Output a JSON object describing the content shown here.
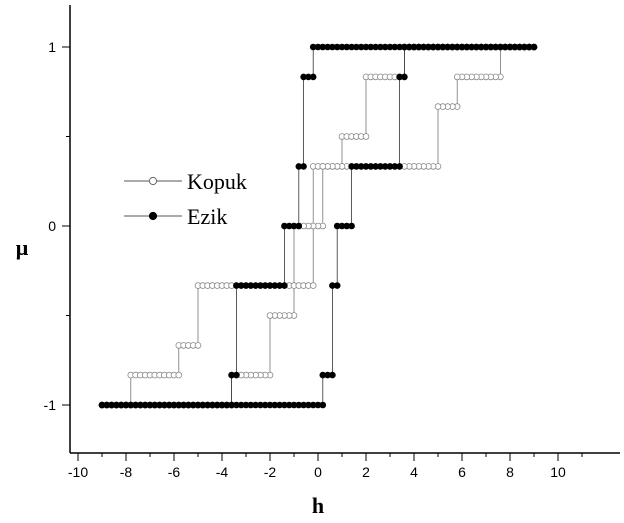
{
  "chart_data": {
    "type": "scatter",
    "xlabel": "h",
    "ylabel": "μ",
    "xlim": [
      -11,
      11
    ],
    "ylim": [
      -1.25,
      1.25
    ],
    "xticks": [
      -10,
      -8,
      -6,
      -4,
      -2,
      0,
      2,
      4,
      6,
      8,
      10
    ],
    "xtick_labels": [
      "-10",
      "-8",
      "-6",
      "-4",
      "-2",
      "0",
      "2",
      "4",
      "6",
      "8",
      "10"
    ],
    "yticks": [
      -1,
      0,
      1
    ],
    "ytick_labels": [
      "-1",
      "0",
      "1"
    ],
    "grid": false,
    "legend_position": "left",
    "series": [
      {
        "name": "Kopuk",
        "marker": "open-circle",
        "color": "#888888",
        "branches": [
          [
            [
              -9,
              -1
            ],
            [
              -7.8,
              -1
            ],
            [
              -7.8,
              -0.833
            ],
            [
              -5.8,
              -0.833
            ],
            [
              -5.8,
              -0.667
            ],
            [
              -5,
              -0.667
            ],
            [
              -5,
              -0.333
            ],
            [
              -0.2,
              -0.333
            ],
            [
              -0.2,
              0.333
            ],
            [
              1,
              0.333
            ],
            [
              1,
              0.5
            ],
            [
              2,
              0.5
            ],
            [
              2,
              0.833
            ],
            [
              3.6,
              0.833
            ],
            [
              3.6,
              1
            ],
            [
              9,
              1
            ]
          ],
          [
            [
              9,
              1
            ],
            [
              7.6,
              1
            ],
            [
              7.6,
              0.833
            ],
            [
              5.8,
              0.833
            ],
            [
              5.8,
              0.667
            ],
            [
              5,
              0.667
            ],
            [
              5,
              0.333
            ],
            [
              0.2,
              0.333
            ],
            [
              0.2,
              0
            ],
            [
              -1,
              0
            ],
            [
              -1,
              -0.5
            ],
            [
              -2,
              -0.5
            ],
            [
              -2,
              -0.833
            ],
            [
              -3.6,
              -0.833
            ],
            [
              -3.6,
              -1
            ],
            [
              -9,
              -1
            ]
          ]
        ]
      },
      {
        "name": "Ezik",
        "marker": "filled-circle",
        "color": "#000000",
        "branches": [
          [
            [
              -9,
              -1
            ],
            [
              0.2,
              -1
            ],
            [
              0.2,
              -0.833
            ],
            [
              0.6,
              -0.833
            ],
            [
              0.6,
              -0.333
            ],
            [
              0.8,
              -0.333
            ],
            [
              0.8,
              0
            ],
            [
              1.4,
              0
            ],
            [
              1.4,
              0.333
            ],
            [
              3.4,
              0.333
            ],
            [
              3.4,
              0.833
            ],
            [
              3.6,
              0.833
            ],
            [
              3.6,
              1
            ],
            [
              9,
              1
            ]
          ],
          [
            [
              9,
              1
            ],
            [
              -0.2,
              1
            ],
            [
              -0.2,
              0.833
            ],
            [
              -0.6,
              0.833
            ],
            [
              -0.6,
              0.333
            ],
            [
              -0.8,
              0.333
            ],
            [
              -0.8,
              0
            ],
            [
              -1.4,
              0
            ],
            [
              -1.4,
              -0.333
            ],
            [
              -3.4,
              -0.333
            ],
            [
              -3.4,
              -0.833
            ],
            [
              -3.6,
              -0.833
            ],
            [
              -3.6,
              -1
            ],
            [
              -9,
              -1
            ]
          ]
        ]
      }
    ]
  }
}
